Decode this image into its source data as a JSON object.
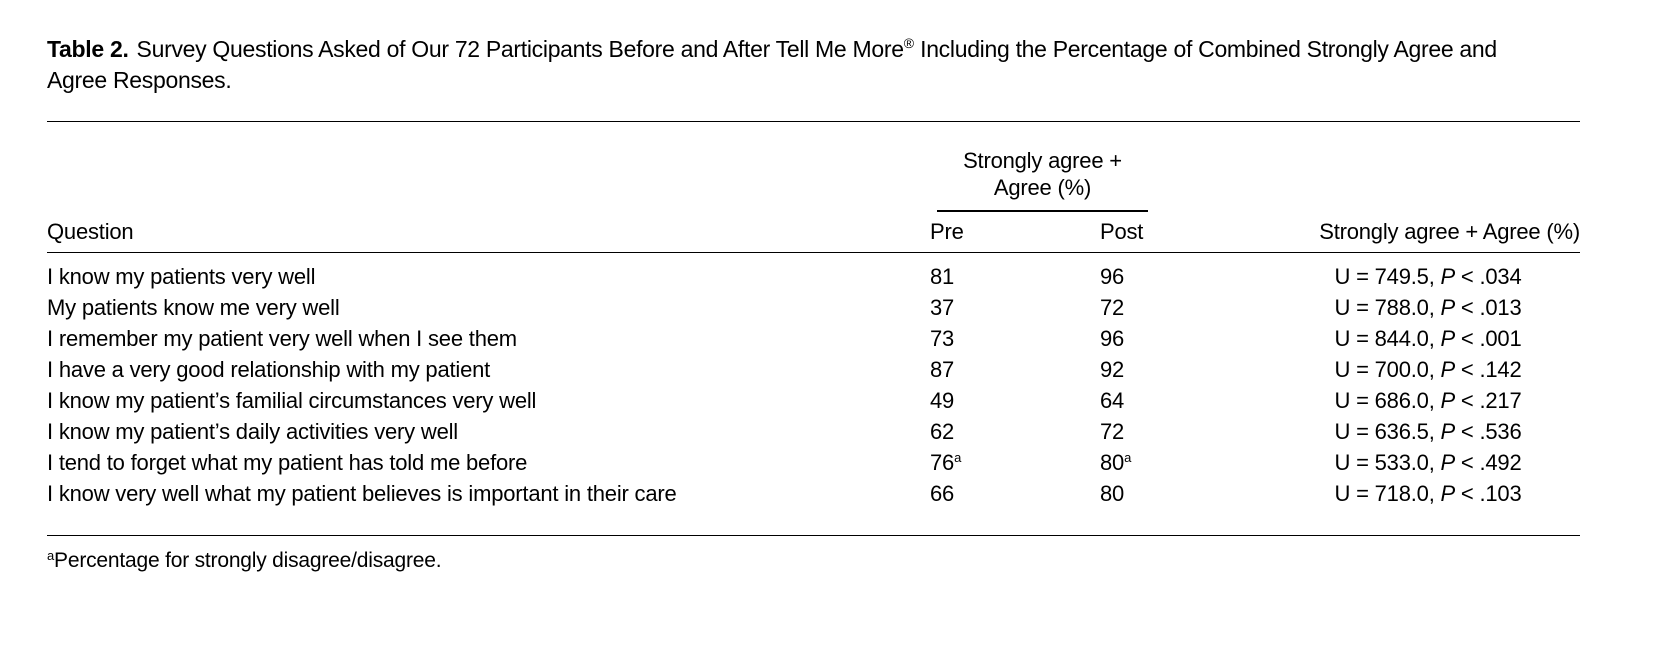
{
  "page": {
    "background_color": "#ffffff",
    "text_color": "#000000"
  },
  "title": {
    "label": "Table 2.",
    "text_before_reg": "Survey Questions Asked of Our 72 Participants Before and After Tell Me More",
    "reg_mark": "®",
    "text_after_reg": " Including the Percentage of Combined Strongly Agree and Agree Responses."
  },
  "table": {
    "spanner": {
      "line1": "Strongly agree +",
      "line2": "Agree (%)"
    },
    "columns": {
      "question": "Question",
      "pre": "Pre",
      "post": "Post",
      "stat": "Strongly agree + Agree (%)"
    },
    "rows": [
      {
        "question": "I know my patients very well",
        "pre": "81",
        "post": "96",
        "stat_u": "U = 749.5, ",
        "stat_p": "P",
        "stat_tail": " < .034"
      },
      {
        "question": "My patients know me very well",
        "pre": "37",
        "post": "72",
        "stat_u": "U = 788.0, ",
        "stat_p": "P",
        "stat_tail": " < .013"
      },
      {
        "question": "I remember my patient very well when I see them",
        "pre": "73",
        "post": "96",
        "stat_u": "U = 844.0, ",
        "stat_p": "P",
        "stat_tail": " < .001"
      },
      {
        "question": "I have a very good relationship with my patient",
        "pre": "87",
        "post": "92",
        "stat_u": "U = 700.0, ",
        "stat_p": "P",
        "stat_tail": " < .142"
      },
      {
        "question": "I know my patient’s familial circumstances very well",
        "pre": "49",
        "post": "64",
        "stat_u": "U = 686.0, ",
        "stat_p": "P",
        "stat_tail": " < .217"
      },
      {
        "question": "I know my patient’s daily activities very well",
        "pre": "62",
        "post": "72",
        "stat_u": "U = 636.5, ",
        "stat_p": "P",
        "stat_tail": " < .536"
      },
      {
        "question": "I tend to forget what my patient has told me before",
        "pre": "76",
        "pre_sup": "a",
        "post": "80",
        "post_sup": "a",
        "stat_u": "U = 533.0, ",
        "stat_p": "P",
        "stat_tail": " < .492"
      },
      {
        "question": "I know very well what my patient believes is important in their care",
        "pre": "66",
        "post": "80",
        "stat_u": "U = 718.0, ",
        "stat_p": "P",
        "stat_tail": " < .103"
      }
    ],
    "footnote": {
      "marker": "a",
      "text": "Percentage for strongly disagree/disagree."
    }
  }
}
